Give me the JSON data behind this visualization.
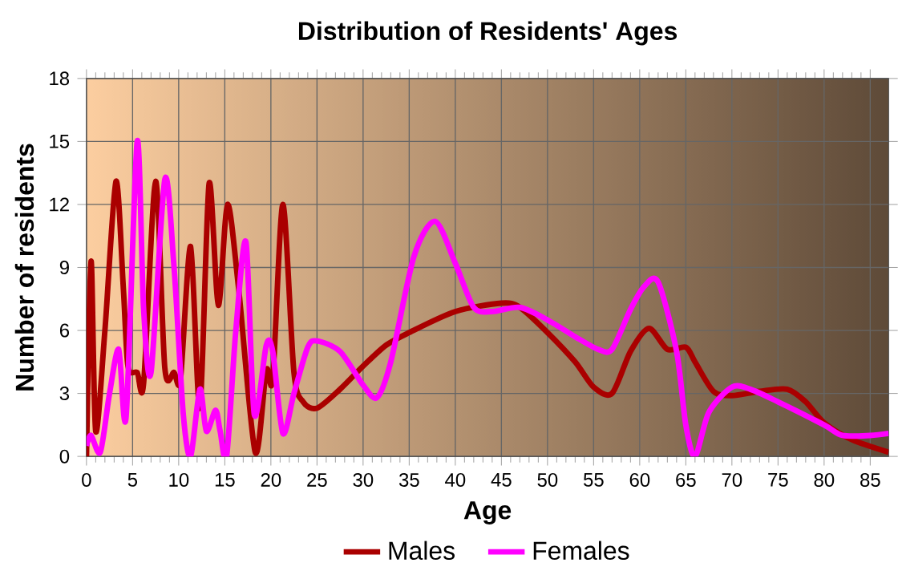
{
  "chart_data": {
    "type": "line",
    "title": "Distribution of Residents' Ages",
    "xlabel": "Age",
    "ylabel": "Number of residents",
    "xlim": [
      0,
      87
    ],
    "ylim": [
      0,
      18
    ],
    "xticks": [
      0,
      5,
      10,
      15,
      20,
      25,
      30,
      35,
      40,
      45,
      50,
      55,
      60,
      65,
      70,
      75,
      80,
      85
    ],
    "yticks": [
      0,
      3,
      6,
      9,
      12,
      15,
      18
    ],
    "grid": true,
    "legend": "bottom",
    "series": [
      {
        "name": "Males",
        "color": "#aa0000",
        "x": [
          0,
          0.5,
          1,
          2,
          3.2,
          4,
          4.5,
          5.5,
          6.2,
          7.5,
          8.5,
          9.5,
          10.2,
          11.3,
          12.3,
          13.3,
          14.3,
          15.3,
          16.5,
          18.3,
          19.5,
          20.2,
          21.3,
          22.5,
          23.5,
          25,
          27.5,
          30,
          32.5,
          35,
          40,
          45,
          47,
          50,
          53,
          55,
          57,
          59,
          61,
          63,
          65,
          66,
          68,
          70,
          73,
          76,
          78,
          80,
          83,
          87
        ],
        "values": [
          0,
          9.3,
          1.2,
          6,
          13.1,
          8,
          4.3,
          4,
          3.5,
          13.1,
          4.2,
          4,
          3.7,
          10,
          2.3,
          13,
          7.2,
          12,
          8,
          0.2,
          4.1,
          3.7,
          12,
          4,
          2.6,
          2.3,
          3.2,
          4.3,
          5.3,
          5.9,
          6.9,
          7.3,
          7.1,
          5.9,
          4.5,
          3.3,
          3,
          5,
          6.1,
          5.1,
          5.2,
          4.5,
          3.1,
          2.9,
          3.1,
          3.2,
          2.6,
          1.6,
          0.8,
          0.2
        ]
      },
      {
        "name": "Females",
        "color": "#ff00ff",
        "x": [
          0,
          0.5,
          1.5,
          2.5,
          3.5,
          4.3,
          5.5,
          6.2,
          7,
          8.5,
          9.5,
          10.5,
          11.3,
          12.3,
          13,
          14,
          14.5,
          15.2,
          16.2,
          17.3,
          18.2,
          19.5,
          20.2,
          21.3,
          22.5,
          24,
          25,
          27.5,
          30,
          31.5,
          33,
          35.5,
          37.8,
          40,
          42,
          44,
          47,
          50,
          53,
          55.5,
          57,
          59,
          60.5,
          62,
          64,
          65,
          66,
          67.5,
          70,
          72,
          75,
          80,
          82,
          85,
          87
        ],
        "values": [
          0.5,
          1,
          0.2,
          3,
          5.1,
          1.9,
          15,
          7,
          4,
          13.2,
          9,
          2,
          0,
          3.2,
          1.2,
          2.2,
          1.2,
          0,
          6,
          10.2,
          2,
          5.3,
          5,
          1.1,
          3,
          5.2,
          5.5,
          5,
          3.4,
          2.8,
          4.5,
          9.5,
          11.2,
          9.2,
          7.1,
          6.9,
          7.1,
          6.5,
          5.7,
          5.1,
          5.1,
          7,
          8.1,
          8.3,
          5,
          1.5,
          0,
          2.1,
          3.3,
          3.2,
          2.6,
          1.5,
          1,
          1,
          1.1
        ]
      }
    ]
  }
}
